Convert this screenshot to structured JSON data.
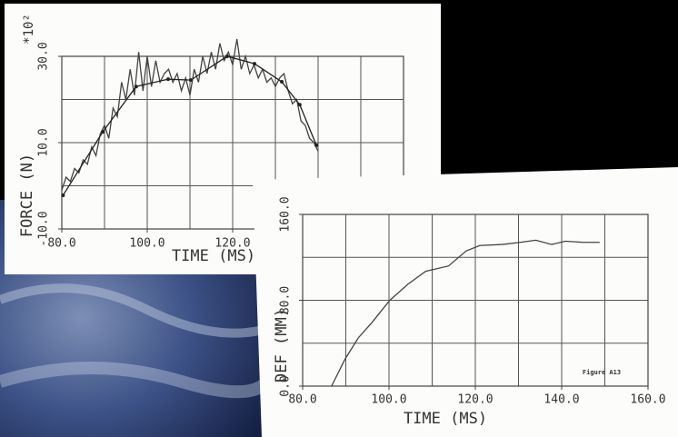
{
  "chart_data": [
    {
      "type": "line",
      "multiplier": "*10²",
      "y_label": "FORCE (N)",
      "x_label": "TIME (MS)",
      "xlim": [
        80,
        160
      ],
      "ylim": [
        -10,
        30
      ],
      "xgrid": [
        80,
        90,
        100,
        110,
        120,
        130,
        140,
        150,
        160
      ],
      "ygrid": [
        -10,
        0,
        10,
        20,
        30
      ],
      "xticks": [
        {
          "value": 80,
          "label": "80.0"
        },
        {
          "value": 100,
          "label": "100.0"
        },
        {
          "value": 120,
          "label": "120.0"
        }
      ],
      "yticks": [
        {
          "value": -10,
          "label": "-10.0"
        },
        {
          "value": 10,
          "label": "10.0"
        },
        {
          "value": 30,
          "label": "30.0"
        }
      ],
      "series": [
        {
          "color": "#444",
          "markers": false,
          "x": [
            80,
            81,
            82,
            83,
            84,
            85,
            86,
            87,
            88,
            89,
            90,
            91,
            92,
            93,
            94,
            95,
            96,
            97,
            98,
            99,
            100,
            101,
            102,
            103,
            104,
            105,
            106,
            107,
            108,
            109,
            110,
            111,
            112,
            113,
            114,
            115,
            116,
            117,
            118,
            119,
            120,
            121,
            122,
            123,
            124,
            125,
            126,
            127,
            128,
            129,
            130,
            131,
            132,
            133,
            134,
            135,
            136,
            137,
            138,
            139,
            140
          ],
          "values": [
            -1,
            2,
            1,
            4,
            3,
            6,
            5,
            9,
            7,
            12,
            14,
            11,
            18,
            16,
            24,
            20,
            27,
            21,
            31,
            22,
            30,
            23,
            29,
            24,
            26,
            27,
            24,
            26,
            22,
            25,
            21,
            27,
            24,
            30,
            26,
            31,
            27,
            33,
            29,
            31,
            28,
            34,
            27,
            30,
            26,
            28,
            25,
            27,
            24,
            25,
            23,
            25,
            26,
            22,
            19,
            20,
            15,
            14,
            11,
            10,
            8
          ]
        },
        {
          "color": "#222",
          "markers": true,
          "x": [
            80.3,
            89.6,
            97.4,
            104.9,
            110.2,
            118.7,
            125.1,
            131.5,
            135.7,
            139.6
          ],
          "values": [
            -2.2,
            12.5,
            23,
            24.7,
            24.5,
            30,
            28.3,
            24.1,
            18.8,
            9.4
          ]
        }
      ]
    },
    {
      "type": "line",
      "y_label": "DEF (MM)",
      "x_label": "TIME (MS)",
      "note": "Figure A13",
      "xlim": [
        80,
        160
      ],
      "ylim": [
        0,
        160
      ],
      "xgrid": [
        80,
        90,
        100,
        110,
        120,
        130,
        140,
        150,
        160
      ],
      "ygrid": [
        0,
        40,
        80,
        120,
        160
      ],
      "xticks": [
        {
          "value": 80,
          "label": "80.0"
        },
        {
          "value": 100,
          "label": "100.0"
        },
        {
          "value": 120,
          "label": "120.0"
        },
        {
          "value": 140,
          "label": "140.0"
        },
        {
          "value": 160,
          "label": "160.0"
        }
      ],
      "yticks": [
        {
          "value": 0,
          "label": "0.0"
        },
        {
          "value": 80,
          "label": "80.0"
        },
        {
          "value": 160,
          "label": "160.0"
        }
      ],
      "series": [
        {
          "color": "#444",
          "markers": false,
          "x": [
            86.7,
            89.8,
            92.9,
            96,
            100.2,
            104.4,
            108.5,
            113.8,
            117.9,
            121,
            126.3,
            130.4,
            134,
            137.7,
            140.8,
            145,
            148.8
          ],
          "values": [
            0,
            25,
            45,
            59,
            80,
            95,
            107,
            112,
            126,
            131,
            132,
            134,
            136,
            132,
            135,
            134,
            134
          ]
        }
      ]
    }
  ]
}
